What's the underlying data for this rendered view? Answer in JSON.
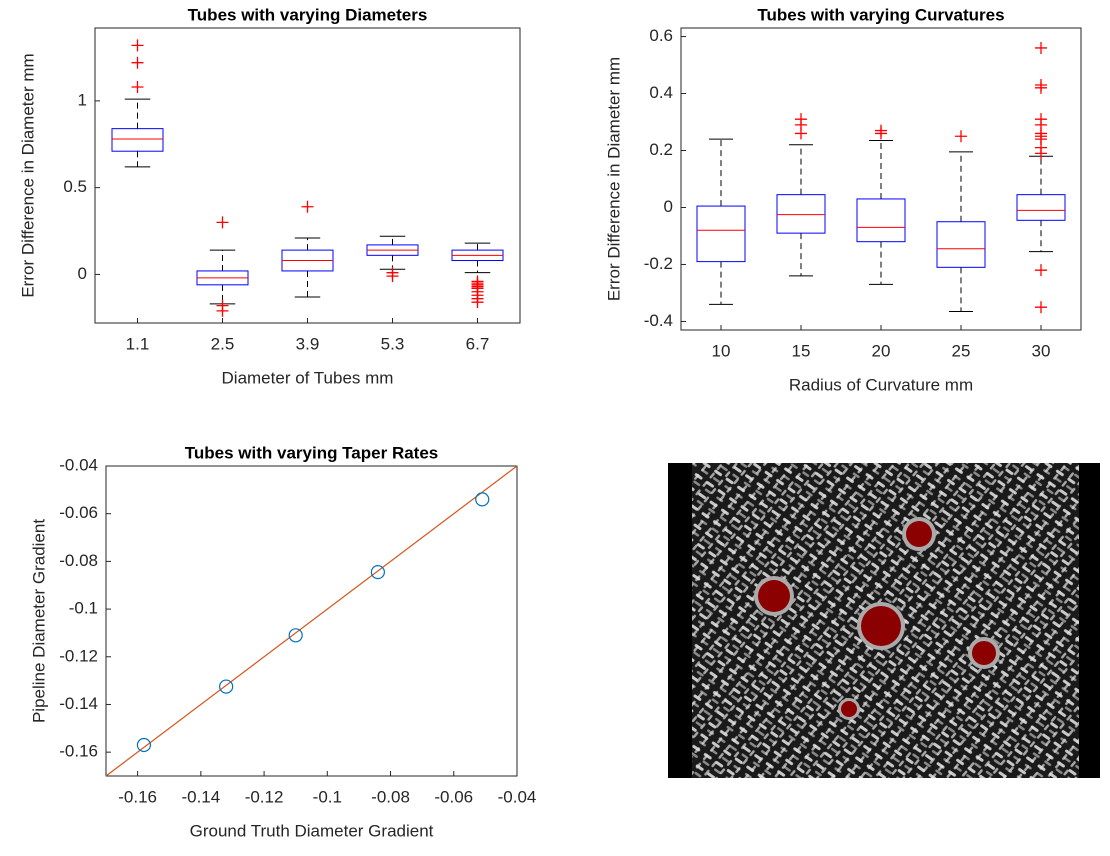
{
  "chart_data": [
    {
      "type": "box",
      "title": "Tubes with varying Diameters",
      "x_label": "Diameter of Tubes mm",
      "y_label": "Error Difference in Diameter mm",
      "categories": [
        "1.1",
        "2.5",
        "3.9",
        "5.3",
        "6.7"
      ],
      "boxes": [
        {
          "whisker_low": 0.62,
          "q1": 0.71,
          "median": 0.78,
          "q3": 0.84,
          "whisker_high": 1.01,
          "outliers": [
            1.08,
            1.22,
            1.32
          ]
        },
        {
          "whisker_low": -0.17,
          "q1": -0.06,
          "median": -0.02,
          "q3": 0.02,
          "whisker_high": 0.14,
          "outliers": [
            0.3,
            -0.18,
            -0.21
          ]
        },
        {
          "whisker_low": -0.13,
          "q1": 0.02,
          "median": 0.08,
          "q3": 0.14,
          "whisker_high": 0.21,
          "outliers": [
            0.39
          ]
        },
        {
          "whisker_low": 0.03,
          "q1": 0.11,
          "median": 0.14,
          "q3": 0.17,
          "whisker_high": 0.22,
          "outliers": [
            0.01,
            -0.01
          ]
        },
        {
          "whisker_low": 0.01,
          "q1": 0.08,
          "median": 0.11,
          "q3": 0.14,
          "whisker_high": 0.18,
          "outliers": [
            -0.04,
            -0.05,
            -0.06,
            -0.07,
            -0.08,
            -0.1,
            -0.12,
            -0.14,
            -0.16
          ]
        }
      ],
      "box_color": "#0000ff",
      "median_color": "#ff0000",
      "outlier_color": "#ff0000",
      "whisker_color": "#000000",
      "ylim": [
        -0.28,
        1.42
      ],
      "yticks": [
        0,
        0.5,
        1
      ]
    },
    {
      "type": "box",
      "title": "Tubes with varying Curvatures",
      "x_label": "Radius of Curvature mm",
      "y_label": "Error Difference in Diameter mm",
      "categories": [
        "10",
        "15",
        "20",
        "25",
        "30"
      ],
      "boxes": [
        {
          "whisker_low": -0.34,
          "q1": -0.19,
          "median": -0.08,
          "q3": 0.005,
          "whisker_high": 0.24,
          "outliers": []
        },
        {
          "whisker_low": -0.24,
          "q1": -0.09,
          "median": -0.025,
          "q3": 0.045,
          "whisker_high": 0.22,
          "outliers": [
            0.26,
            0.29,
            0.31
          ]
        },
        {
          "whisker_low": -0.27,
          "q1": -0.12,
          "median": -0.07,
          "q3": 0.03,
          "whisker_high": 0.235,
          "outliers": [
            0.26,
            0.27
          ]
        },
        {
          "whisker_low": -0.365,
          "q1": -0.21,
          "median": -0.145,
          "q3": -0.05,
          "whisker_high": 0.195,
          "outliers": [
            0.25
          ]
        },
        {
          "whisker_low": -0.155,
          "q1": -0.045,
          "median": -0.01,
          "q3": 0.045,
          "whisker_high": 0.18,
          "outliers": [
            0.19,
            0.21,
            0.24,
            0.25,
            0.26,
            0.29,
            0.31,
            0.42,
            0.43,
            0.56,
            -0.22,
            -0.35
          ]
        }
      ],
      "box_color": "#0000ff",
      "median_color": "#ff0000",
      "outlier_color": "#ff0000",
      "whisker_color": "#000000",
      "ylim": [
        -0.43,
        0.63
      ],
      "yticks": [
        -0.4,
        -0.2,
        0,
        0.2,
        0.4,
        0.6
      ]
    },
    {
      "type": "scatter",
      "title": "Tubes with varying Taper Rates",
      "x_label": "Ground Truth Diameter Gradient",
      "y_label": "Pipeline Diameter Gradient",
      "points": {
        "x": [
          -0.158,
          -0.132,
          -0.11,
          -0.084,
          -0.051
        ],
        "values": [
          -0.157,
          -0.1325,
          -0.111,
          -0.0845,
          -0.054
        ],
        "color": "#0072bd"
      },
      "fit_line": {
        "x": [
          -0.17,
          -0.04
        ],
        "values": [
          -0.17,
          -0.04
        ],
        "color": "#d95319"
      },
      "xlim": [
        -0.17,
        -0.04
      ],
      "xticks": [
        -0.16,
        -0.14,
        -0.12,
        -0.1,
        -0.08,
        -0.06,
        -0.04
      ],
      "ylim": [
        -0.17,
        -0.04
      ],
      "yticks": [
        -0.16,
        -0.14,
        -0.12,
        -0.1,
        -0.08,
        -0.06,
        -0.04
      ]
    }
  ]
}
